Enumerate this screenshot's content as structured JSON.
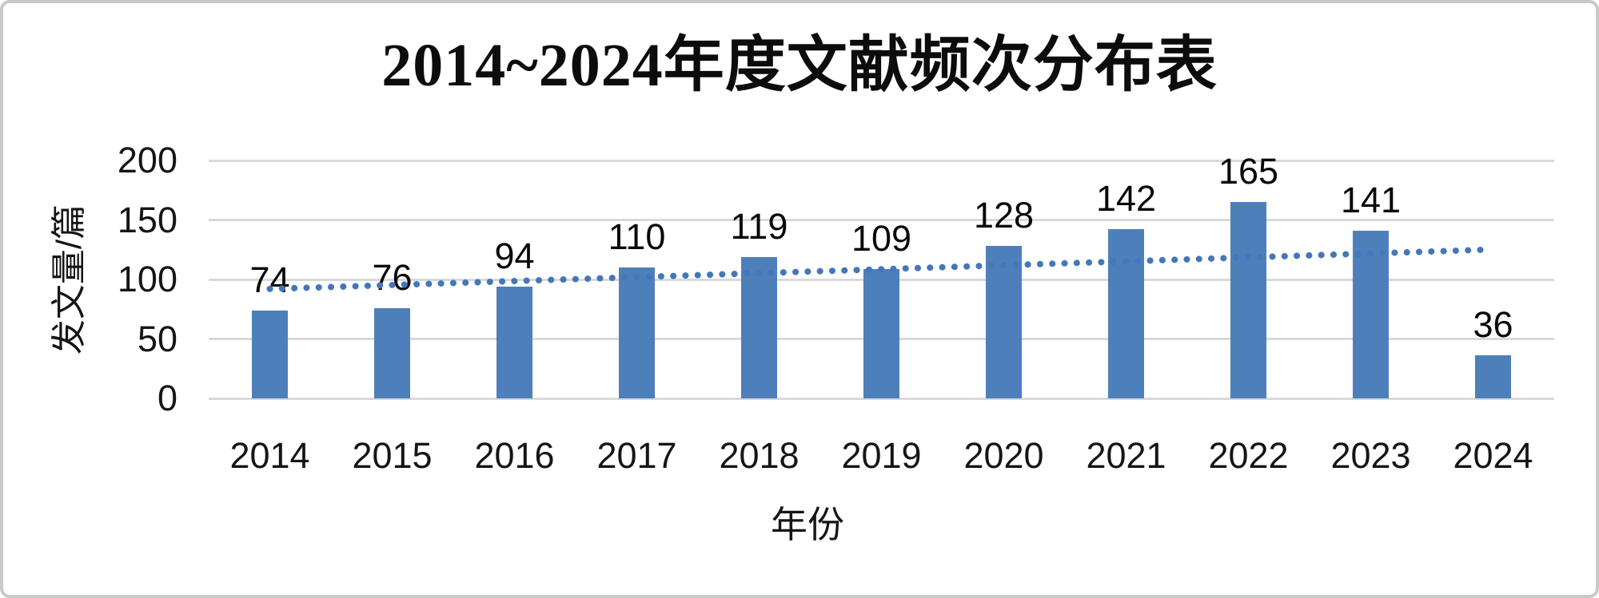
{
  "frame": {
    "background": "#ffffff",
    "border_color": "#c9c9c9"
  },
  "chart_data": {
    "type": "bar",
    "title": "2014~2024年度文献频次分布表",
    "xlabel": "年份",
    "ylabel": "发文量/篇",
    "categories": [
      "2014",
      "2015",
      "2016",
      "2017",
      "2018",
      "2019",
      "2020",
      "2021",
      "2022",
      "2023",
      "2024"
    ],
    "values": [
      74,
      76,
      94,
      110,
      119,
      109,
      128,
      142,
      165,
      141,
      36
    ],
    "data_labels_shown": true,
    "ylim": [
      0,
      200
    ],
    "yticks": [
      0,
      50,
      100,
      150,
      200
    ],
    "grid": "horizontal",
    "legend": "none",
    "colors": {
      "bar": "#4d80ba",
      "trendline": "#4477b9",
      "gridline": "#d9d9d9",
      "text": "#151515",
      "title_text": "#0c0c0c"
    },
    "trendline": {
      "type": "linear",
      "style": "dotted",
      "start_category": "2014",
      "start_value": 92,
      "end_category": "2024",
      "end_value": 125
    }
  }
}
